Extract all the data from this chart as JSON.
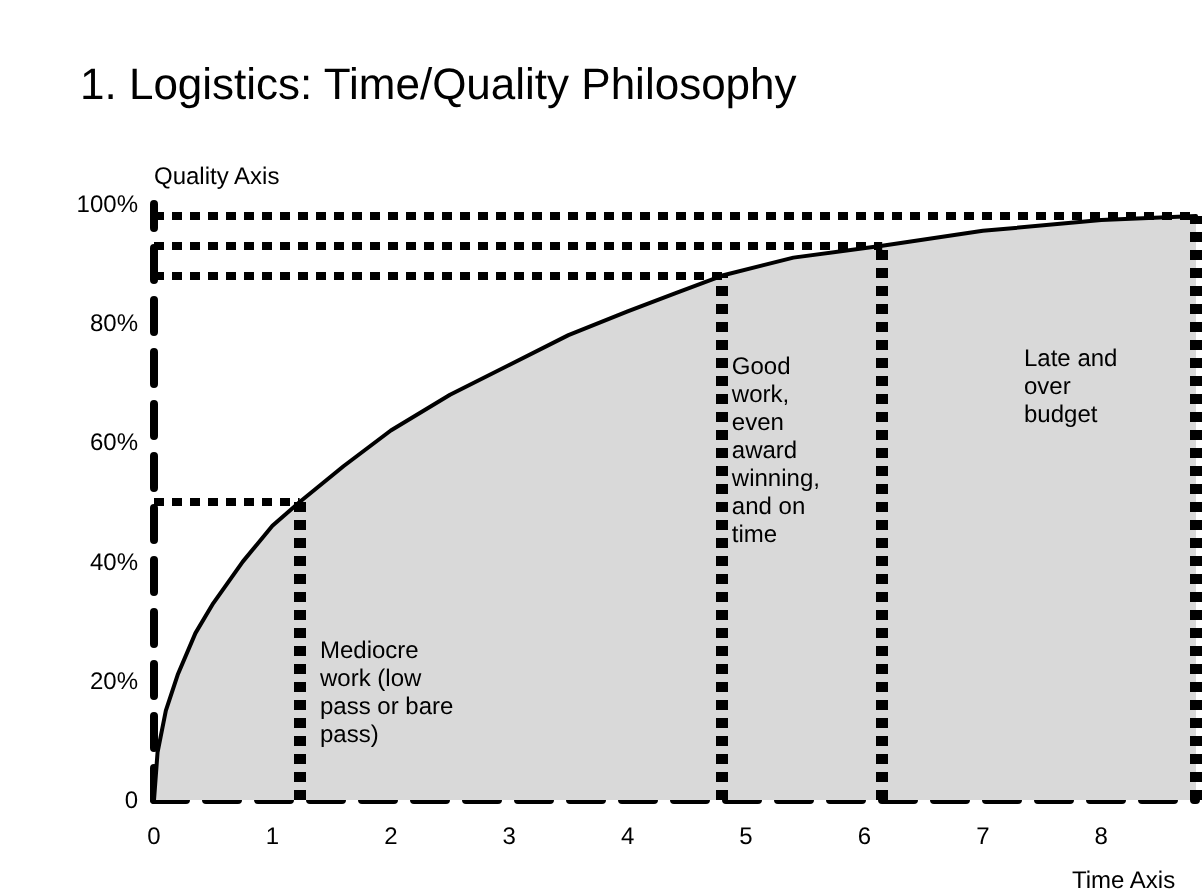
{
  "chart_data": {
    "type": "area",
    "title": "1. Logistics: Time/Quality Philosophy",
    "xlabel": "Time Axis",
    "ylabel": "Quality Axis",
    "x": [
      0,
      0.03,
      0.1,
      0.2,
      0.35,
      0.5,
      0.75,
      1,
      1.23,
      1.6,
      2,
      2.5,
      3,
      3.5,
      4,
      4.4,
      4.8,
      5.4,
      6.15,
      7,
      8,
      8.8
    ],
    "series": [
      {
        "color": "#d9d9d9",
        "values": [
          0,
          8,
          15,
          21,
          28,
          33,
          40,
          46,
          50,
          56,
          62,
          68,
          73,
          78,
          82,
          85,
          88,
          91,
          93,
          95.5,
          97.3,
          98
        ]
      }
    ],
    "xlim": [
      0,
      8.8
    ],
    "ylim": [
      0,
      100
    ],
    "xticks": [
      0,
      1,
      2,
      3,
      4,
      5,
      6,
      7,
      8
    ],
    "yticks": [
      0,
      {
        "value": 20,
        "label": "20%"
      },
      {
        "value": 40,
        "label": "40%"
      },
      {
        "value": 60,
        "label": "60%"
      },
      {
        "value": 80,
        "label": "80%"
      },
      {
        "value": 100,
        "label": "100%"
      }
    ],
    "ref_lines": [
      {
        "axis": "y",
        "value": 98,
        "line_style": "dotted"
      },
      {
        "axis": "y",
        "value": 93,
        "line_style": "dotted"
      },
      {
        "axis": "y",
        "value": 88,
        "line_style": "dotted"
      },
      {
        "axis": "y",
        "value": 50,
        "line_style": "dotted"
      },
      {
        "axis": "x",
        "value": 1.23,
        "line_style": "dotted"
      },
      {
        "axis": "x",
        "value": 4.8,
        "line_style": "dotted"
      },
      {
        "axis": "x",
        "value": 6.15,
        "line_style": "dotted"
      },
      {
        "axis": "x",
        "value": 8.8,
        "line_style": "dotted"
      }
    ],
    "annotations": [
      "Mediocre work (low pass or bare pass)",
      {
        "text": "Good work, even award winning, and on time",
        "x": 4.88,
        "y": 55
      },
      "Late and over budget"
    ],
    "grid": false,
    "marker": "none",
    "line_style": "solid"
  }
}
